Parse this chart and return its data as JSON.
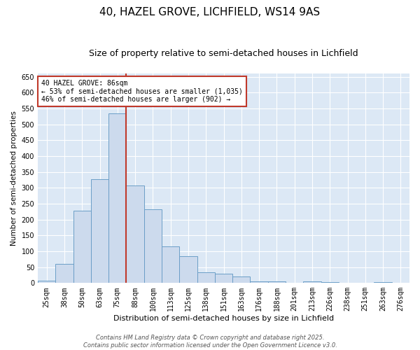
{
  "title1": "40, HAZEL GROVE, LICHFIELD, WS14 9AS",
  "title2": "Size of property relative to semi-detached houses in Lichfield",
  "xlabel": "Distribution of semi-detached houses by size in Lichfield",
  "ylabel": "Number of semi-detached properties",
  "categories": [
    "25sqm",
    "38sqm",
    "50sqm",
    "63sqm",
    "75sqm",
    "88sqm",
    "100sqm",
    "113sqm",
    "125sqm",
    "138sqm",
    "151sqm",
    "163sqm",
    "176sqm",
    "188sqm",
    "201sqm",
    "213sqm",
    "226sqm",
    "238sqm",
    "251sqm",
    "263sqm",
    "276sqm"
  ],
  "values": [
    8,
    60,
    228,
    328,
    535,
    308,
    233,
    115,
    85,
    33,
    30,
    20,
    6,
    6,
    0,
    6,
    2,
    0,
    0,
    4,
    0
  ],
  "bar_color": "#ccdaed",
  "bar_edge_color": "#6b9ec7",
  "vline_color": "#c0392b",
  "annotation_text": "40 HAZEL GROVE: 86sqm\n← 53% of semi-detached houses are smaller (1,035)\n46% of semi-detached houses are larger (902) →",
  "annotation_box_color": "#ffffff",
  "annotation_box_edge": "#c0392b",
  "ylim": [
    0,
    660
  ],
  "yticks": [
    0,
    50,
    100,
    150,
    200,
    250,
    300,
    350,
    400,
    450,
    500,
    550,
    600,
    650
  ],
  "background_color": "#dce8f5",
  "footer_text": "Contains HM Land Registry data © Crown copyright and database right 2025.\nContains public sector information licensed under the Open Government Licence v3.0.",
  "title1_fontsize": 11,
  "title2_fontsize": 9,
  "xlabel_fontsize": 8,
  "ylabel_fontsize": 7.5,
  "grid_color": "#ffffff",
  "tick_label_fontsize": 7
}
